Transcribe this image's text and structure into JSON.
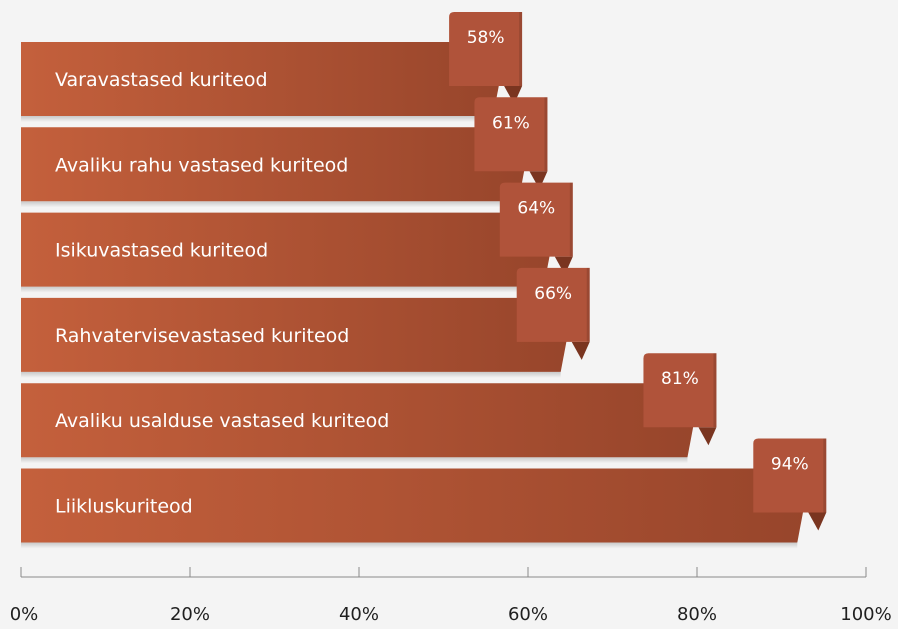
{
  "chart_data": {
    "type": "bar",
    "orientation": "horizontal",
    "categories": [
      "Varavastased kuriteod",
      "Avaliku rahu vastased kuriteod",
      "Isikuvastased kuriteod",
      "Rahvatervisevastased kuriteod",
      "Avaliku usalduse vastased kuriteod",
      "Liikluskuriteod"
    ],
    "values": [
      58,
      61,
      64,
      66,
      81,
      94
    ],
    "value_labels": [
      "58%",
      "61%",
      "64%",
      "66%",
      "81%",
      "94%"
    ],
    "xlim": [
      0,
      100
    ],
    "xticks": [
      0,
      20,
      40,
      60,
      80,
      100
    ],
    "xtick_labels": [
      "0%",
      "20%",
      "40%",
      "60%",
      "80%",
      "100%"
    ],
    "grid": false,
    "legend": "none",
    "colors": {
      "bar_light": "#c4603c",
      "bar_dark": "#97452b",
      "tab": "#b0533a",
      "tab_fold": "#7a3520",
      "axis": "#8a8a8a"
    }
  }
}
